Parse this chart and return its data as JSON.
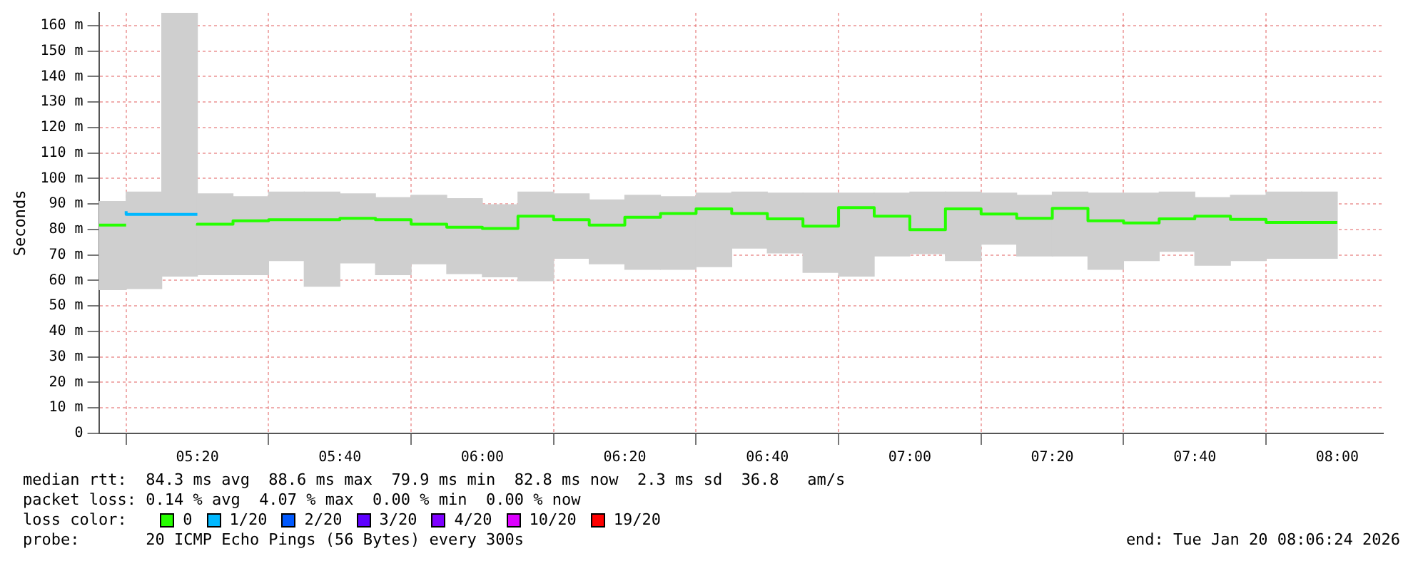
{
  "chart_data": {
    "type": "step",
    "ylabel": "Seconds",
    "legend_title": "loss color:",
    "legend": "bottom",
    "grid": true,
    "xlim": [
      5.103,
      8.107
    ],
    "xticks": [
      {
        "value": 5.3333,
        "label": "05:20"
      },
      {
        "value": 5.6667,
        "label": "05:40"
      },
      {
        "value": 6,
        "label": "06:00"
      },
      {
        "value": 6.3333,
        "label": "06:20"
      },
      {
        "value": 6.6667,
        "label": "06:40"
      },
      {
        "value": 7,
        "label": "07:00"
      },
      {
        "value": 7.3333,
        "label": "07:20"
      },
      {
        "value": 7.6667,
        "label": "07:40"
      },
      {
        "value": 8,
        "label": "08:00"
      }
    ],
    "ylim": [
      0,
      165
    ],
    "yticks": [
      0,
      {
        "value": 10,
        "label": "10 m"
      },
      {
        "value": 20,
        "label": "20 m"
      },
      {
        "value": 30,
        "label": "30 m"
      },
      {
        "value": 40,
        "label": "40 m"
      },
      {
        "value": 50,
        "label": "50 m"
      },
      {
        "value": 60,
        "label": "60 m"
      },
      {
        "value": 70,
        "label": "70 m"
      },
      {
        "value": 80,
        "label": "80 m"
      },
      {
        "value": 90,
        "label": "90 m"
      },
      {
        "value": 100,
        "label": "100 m"
      },
      {
        "value": 110,
        "label": "110 m"
      },
      {
        "value": 120,
        "label": "120 m"
      },
      {
        "value": 130,
        "label": "130 m"
      },
      {
        "value": 140,
        "label": "140 m"
      },
      {
        "value": 150,
        "label": "150 m"
      },
      {
        "value": 160,
        "label": "160 m"
      }
    ],
    "series": [
      {
        "type": "bar",
        "color": "#cfcfcf",
        "x": [
          5.125,
          5.2083,
          5.2917,
          5.375,
          5.4583,
          5.5417,
          5.625,
          5.7083,
          5.7917,
          5.875,
          5.9583,
          6.0417,
          6.125,
          6.2083,
          6.2917,
          6.375,
          6.4583,
          6.5417,
          6.625,
          6.7083,
          6.7917,
          6.875,
          6.9583,
          7.0417,
          7.125,
          7.2083,
          7.2917,
          7.375,
          7.4583,
          7.5417,
          7.625,
          7.7083,
          7.7917,
          7.875,
          7.9583
        ],
        "base": [
          56.4,
          56.8,
          61.7,
          62.3,
          62.3,
          67.8,
          57.7,
          66.9,
          62.3,
          66.5,
          62.7,
          61.4,
          59.9,
          68.7,
          66.5,
          64.4,
          64.4,
          65.4,
          72.7,
          70.8,
          63.2,
          61.7,
          69.6,
          70.5,
          67.8,
          74.2,
          69.6,
          69.6,
          64.4,
          67.8,
          71.4,
          66.0,
          67.8,
          68.7,
          68.7
        ],
        "values": [
          34.6,
          37.9,
          103.3,
          31.7,
          30.6,
          26.9,
          37.0,
          27.1,
          30.2,
          26.9,
          29.4,
          28.3,
          34.8,
          25.3,
          25.1,
          29.0,
          28.5,
          28.9,
          22.0,
          23.5,
          31.1,
          32.6,
          24.7,
          24.2,
          26.9,
          20.1,
          23.8,
          25.1,
          29.9,
          26.5,
          23.3,
          26.5,
          25.6,
          26.0,
          26.0
        ]
      },
      {
        "name": "0",
        "color": "#26ff00",
        "x": [
          5.103,
          5.1667,
          5.25,
          5.3333,
          5.4167,
          5.5,
          5.5833,
          5.6667,
          5.75,
          5.8333,
          5.9167,
          6,
          6.0833,
          6.1667,
          6.25,
          6.3333,
          6.4167,
          6.5,
          6.5833,
          6.6667,
          6.75,
          6.8333,
          6.9167,
          7,
          7.0833,
          7.1667,
          7.25,
          7.3333,
          7.4167,
          7.5,
          7.5833,
          7.6667,
          7.75,
          7.8333,
          7.9167,
          8
        ],
        "values": [
          81.7,
          81.7,
          null,
          81.5,
          82.1,
          83.4,
          83.8,
          83.8,
          84.4,
          83.8,
          82.1,
          80.9,
          80.4,
          85.2,
          83.8,
          81.7,
          84.8,
          86.3,
          88.1,
          86.3,
          84.2,
          81.3,
          88.6,
          85.2,
          79.9,
          88.1,
          86.1,
          84.4,
          88.3,
          83.4,
          82.6,
          84.2,
          85.2,
          84.0,
          82.8,
          82.8
        ]
      },
      {
        "name": "1/20",
        "color": "#00b8ff",
        "x": [
          5.1667,
          5.25,
          5.3333
        ],
        "values": [
          87.2,
          85.9,
          85.9
        ]
      },
      {
        "name": "2/20",
        "color": "#0059ff"
      },
      {
        "name": "3/20",
        "color": "#5e00ff"
      },
      {
        "name": "4/20",
        "color": "#7e00ff"
      },
      {
        "name": "10/20",
        "color": "#dd00ff"
      },
      {
        "name": "19/20",
        "color": "#ff0000"
      }
    ],
    "annotations": [
      "median rtt:  84.3 ms avg  88.6 ms max  79.9 ms min  82.8 ms now  2.3 ms sd  36.8   am/s",
      "packet loss: 0.14 % avg  4.07 % max  0.00 % min  0.00 % now",
      "probe:       20 ICMP Echo Pings (56 Bytes) every 300s",
      "end: Tue Jan 20 08:06:24 2026"
    ]
  }
}
